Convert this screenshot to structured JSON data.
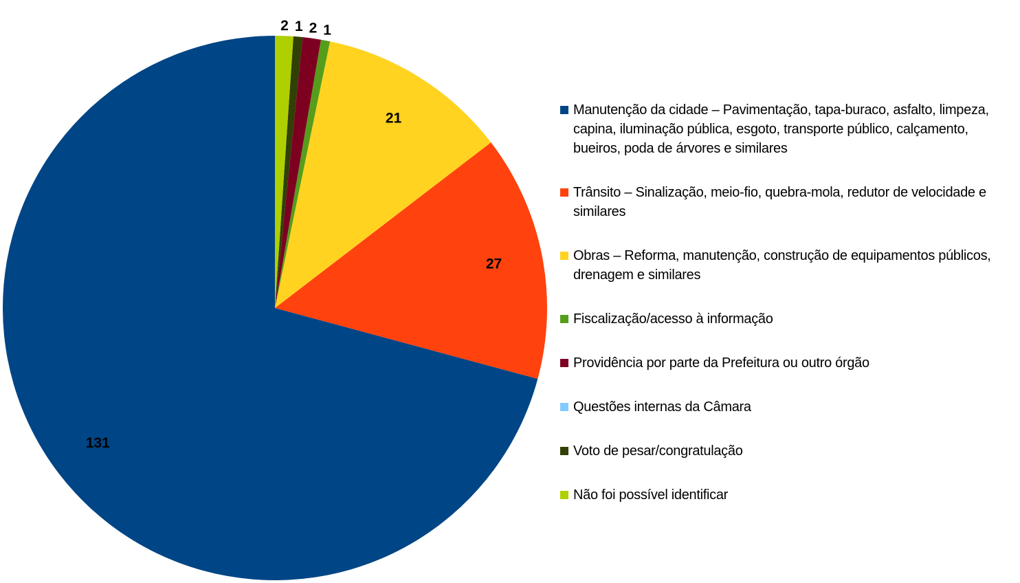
{
  "chart_data": {
    "type": "pie",
    "categories": [
      "Manutenção da cidade – Pavimentação, tapa-buraco, asfalto, limpeza, capina, iluminação pública, esgoto, transporte público, calçamento, bueiros, poda de árvores e similares",
      "Trânsito – Sinalização, meio-fio, quebra-mola, redutor de velocidade e similares",
      "Obras – Reforma, manutenção, construção de equipamentos públicos, drenagem e similares",
      "Fiscalização/acesso à informação",
      "Providência por parte da Prefeitura ou outro órgão",
      "Questões internas da Câmara",
      "Voto de pesar/congratulação",
      "Não foi possível identificar"
    ],
    "values": [
      131,
      27,
      21,
      1,
      2,
      0,
      1,
      2
    ],
    "colors": [
      "#004586",
      "#ff420e",
      "#ffd320",
      "#579d1c",
      "#7e0021",
      "#83caff",
      "#314004",
      "#aecf00"
    ],
    "legend": "right"
  }
}
